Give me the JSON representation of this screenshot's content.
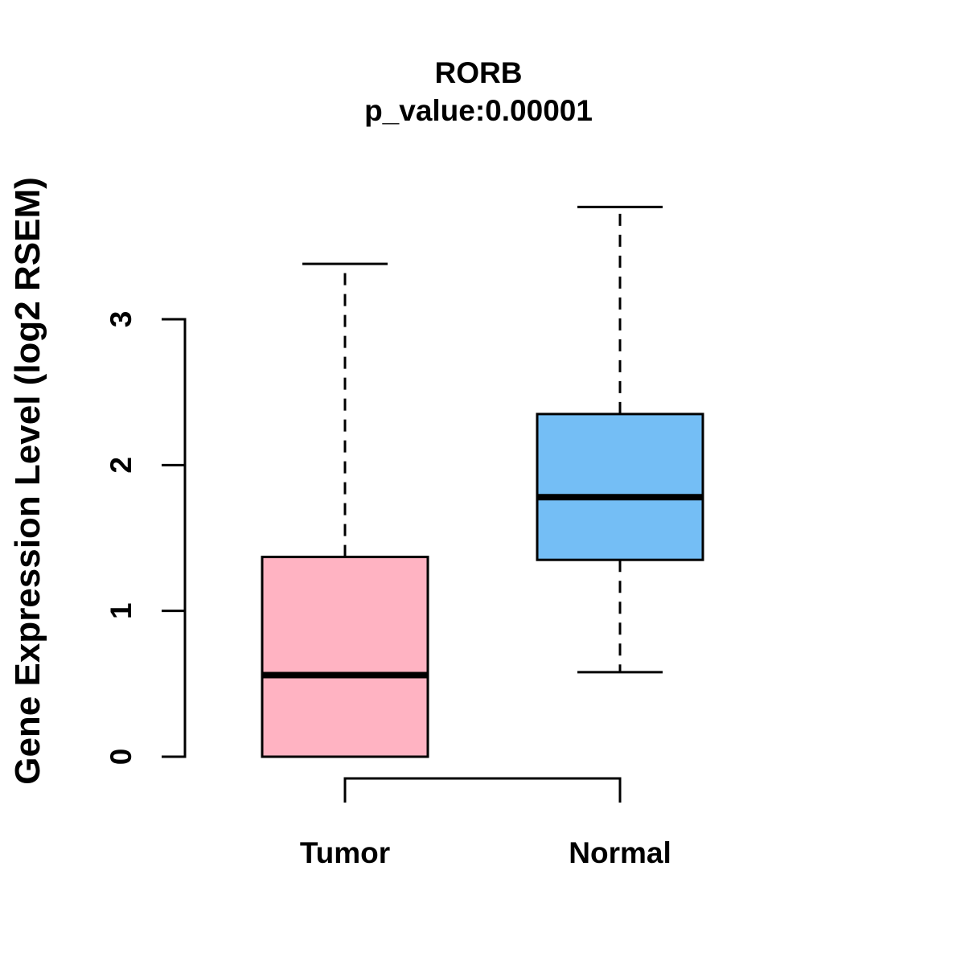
{
  "chart_data": {
    "type": "boxplot",
    "title": "RORB",
    "subtitle": "p_value:0.00001",
    "p_value": 1e-05,
    "ylabel": "Gene Expression Level (log2 RSEM)",
    "categories": [
      "Tumor",
      "Normal"
    ],
    "yticks": [
      0,
      1,
      2,
      3
    ],
    "ylim": [
      0,
      3.9
    ],
    "grid": false,
    "line_color": "#000000",
    "series": [
      {
        "name": "Tumor",
        "color": "#FFB3C2",
        "min": 0.0,
        "q1": 0.0,
        "median": 0.56,
        "q3": 1.37,
        "max": 3.38
      },
      {
        "name": "Normal",
        "color": "#74BEF5",
        "min": 0.58,
        "q1": 1.35,
        "median": 1.78,
        "q3": 2.35,
        "max": 3.77
      }
    ],
    "comparison_bracket": {
      "between": [
        "Tumor",
        "Normal"
      ]
    }
  }
}
